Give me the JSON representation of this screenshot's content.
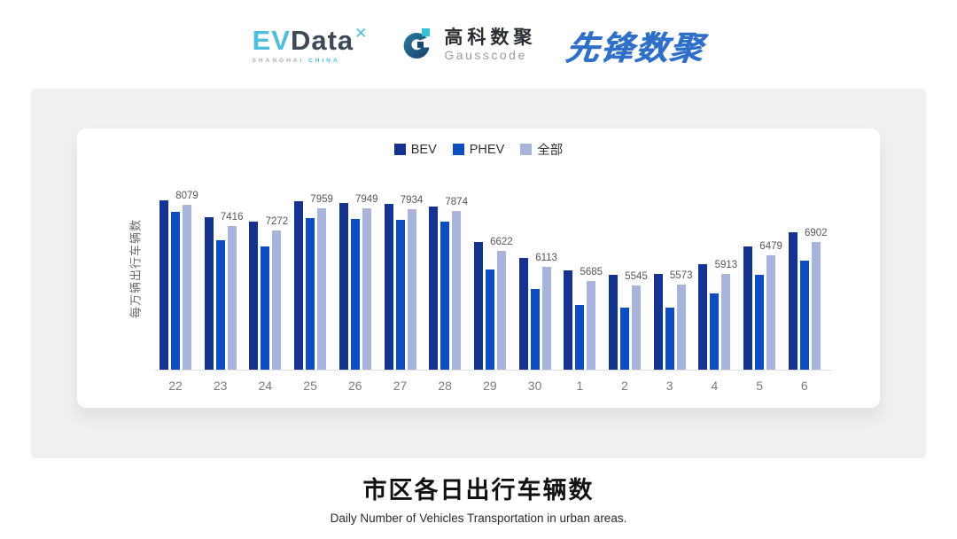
{
  "header": {
    "evdata_logo": {
      "ev": "EV",
      "data": "Data",
      "star": "✕",
      "subtext_left": "SHANGHAI",
      "subtext_right": "CHINA"
    },
    "gausscode_logo": {
      "name_cn": "高科数聚",
      "name_en": "Gausscode"
    },
    "pioneer_logo": {
      "text": "先锋数聚"
    }
  },
  "chart_data": {
    "type": "bar",
    "categories": [
      "22",
      "23",
      "24",
      "25",
      "26",
      "27",
      "28",
      "29",
      "30",
      "1",
      "2",
      "3",
      "4",
      "5",
      "6"
    ],
    "series": [
      {
        "name": "BEV",
        "color": "#14338E",
        "values": [
          8220,
          7690,
          7540,
          8180,
          8130,
          8110,
          8030,
          6900,
          6410,
          6020,
          5880,
          5910,
          6200,
          6760,
          7200
        ]
      },
      {
        "name": "PHEV",
        "color": "#0E4DC1",
        "values": [
          7840,
          6970,
          6760,
          7660,
          7620,
          7590,
          7550,
          6050,
          5440,
          4940,
          4860,
          4860,
          5280,
          5880,
          6310
        ]
      },
      {
        "name": "全部",
        "color": "#A9B4DC",
        "values": [
          8079,
          7416,
          7272,
          7959,
          7949,
          7934,
          7874,
          6622,
          6113,
          5685,
          5545,
          5573,
          5913,
          6479,
          6902
        ]
      }
    ],
    "label_series_index": 2,
    "ylabel": "每万辆出行车辆数",
    "xlabel": "",
    "axis": {
      "y_min": 2900,
      "y_max": 8600,
      "y_ticks_visible": false,
      "gridlines": false
    },
    "legend": {
      "position": "top-center",
      "items": [
        "BEV",
        "PHEV",
        "全部"
      ]
    },
    "title": "市区各日出行车辆数",
    "subtitle": "Daily Number of Vehicles Transportation in urban areas."
  },
  "footer": {
    "title": "市区各日出行车辆数",
    "subtitle": "Daily Number of Vehicles Transportation in urban areas."
  }
}
